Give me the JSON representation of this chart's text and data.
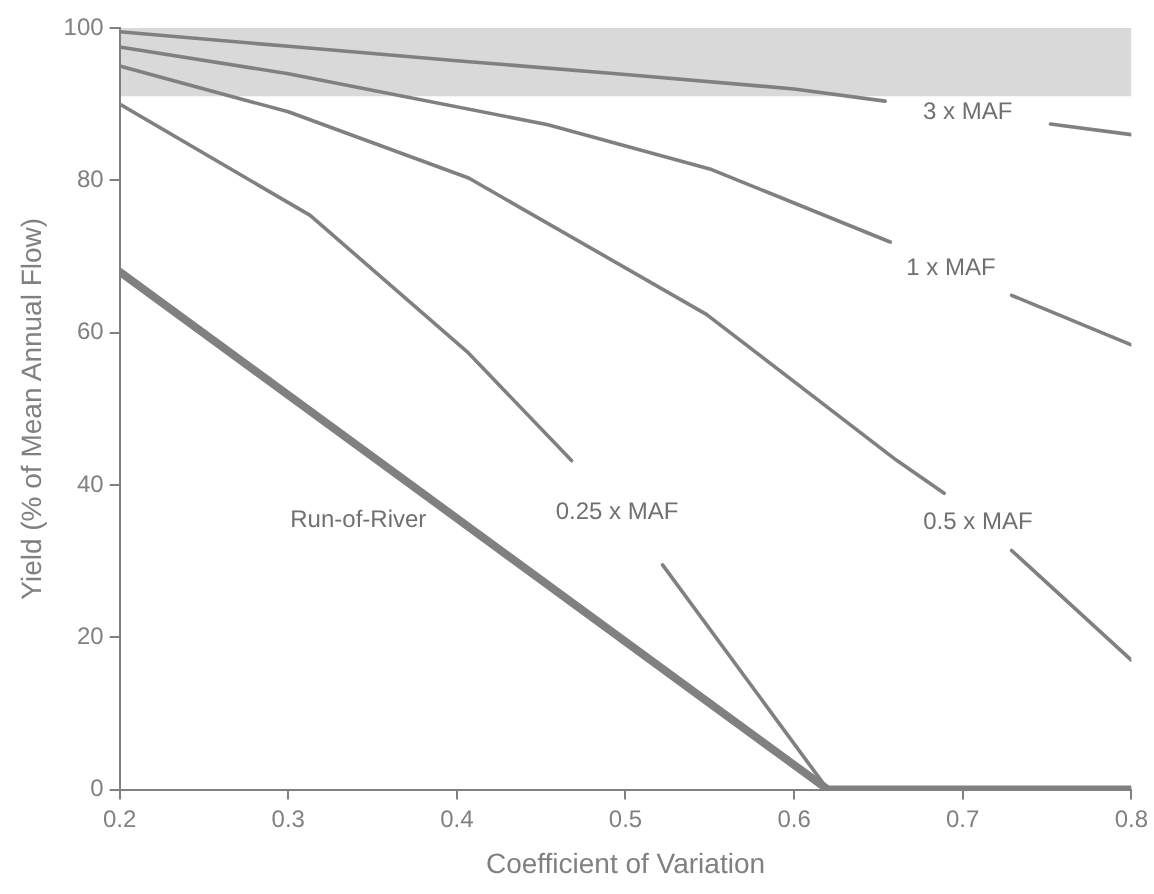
{
  "chart_data": {
    "type": "line",
    "xlabel": "Coefficient of Variation",
    "ylabel": "Yield (% of Mean Annual Flow)",
    "xlim": [
      0.2,
      0.8
    ],
    "xticks": [
      0.2,
      0.3,
      0.4,
      0.5,
      0.6,
      0.7,
      0.8
    ],
    "ylim": [
      0,
      100
    ],
    "yticks": [
      0,
      20,
      40,
      60,
      80,
      100
    ],
    "grid": false,
    "legend": false,
    "marker": "none",
    "line_style": "solid",
    "series": [
      {
        "name": "3 x MAF",
        "color": "#808080",
        "x": [
          0.2,
          0.3,
          0.4,
          0.5,
          0.6,
          0.654,
          0.7,
          0.752,
          0.8
        ],
        "values": [
          99.5,
          97.6,
          95.7,
          93.9,
          92,
          90.4,
          null,
          87.4,
          86
        ]
      },
      {
        "name": "1 x MAF",
        "color": "#808080",
        "x": [
          0.2,
          0.3,
          0.454,
          0.55,
          0.657,
          0.69,
          0.729,
          0.8
        ],
        "values": [
          97.5,
          94,
          87.3,
          81.5,
          71.9,
          null,
          64.9,
          58.4
        ]
      },
      {
        "name": "0.5 x MAF",
        "color": "#808080",
        "x": [
          0.2,
          0.3,
          0.407,
          0.548,
          0.661,
          0.689,
          0.71,
          0.729,
          0.8
        ],
        "values": [
          95,
          89,
          80.3,
          62.4,
          43.2,
          38.9,
          null,
          31.4,
          17
        ]
      },
      {
        "name": "0.25 x MAF",
        "color": "#808080",
        "x": [
          0.2,
          0.313,
          0.407,
          0.468,
          0.495,
          0.522,
          0.62
        ],
        "values": [
          90,
          75.4,
          57.3,
          43.2,
          null,
          29.5,
          0
        ]
      },
      {
        "name": "Run-of-River",
        "color": "#808080",
        "x": [
          0.2,
          0.62,
          0.8
        ],
        "values": [
          68,
          0,
          0
        ]
      }
    ],
    "bands": [
      {
        "axis": "y",
        "from": 91,
        "to": 100,
        "color": "#808080"
      }
    ]
  }
}
